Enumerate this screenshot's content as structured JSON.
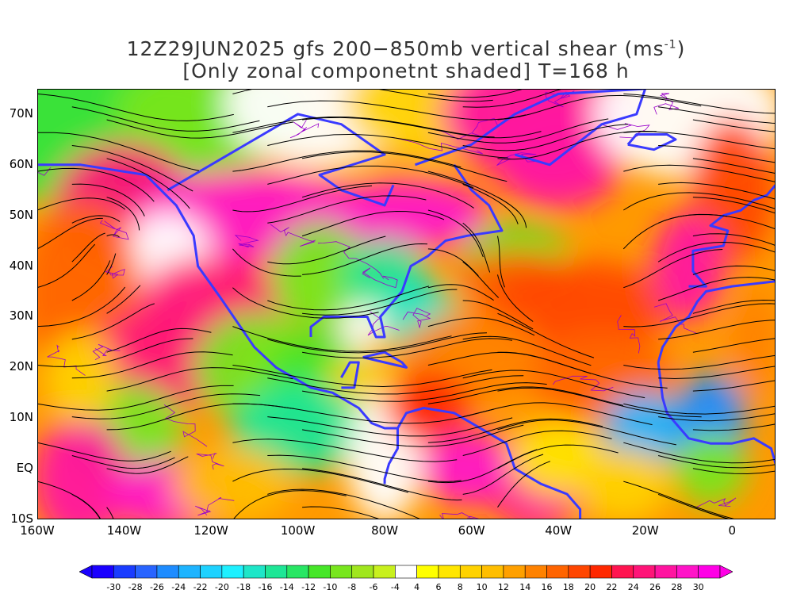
{
  "title": {
    "line1_pre": "12Z29JUN2025 gfs 200−850mb vertical shear (ms",
    "line1_sup": "-1",
    "line1_post": ")",
    "line2": "[Only zonal componetnt shaded] T=168 h"
  },
  "axes": {
    "lat_labels": [
      "70N",
      "60N",
      "50N",
      "40N",
      "30N",
      "20N",
      "10N",
      "EQ",
      "10S"
    ],
    "lon_labels": [
      "160W",
      "140W",
      "120W",
      "100W",
      "80W",
      "60W",
      "40W",
      "20W",
      "0"
    ]
  },
  "colorbar": {
    "labels": [
      "-30",
      "-28",
      "-26",
      "-24",
      "-22",
      "-20",
      "-18",
      "-16",
      "-14",
      "-12",
      "-10",
      "-8",
      "-6",
      "-4",
      "4",
      "6",
      "8",
      "10",
      "12",
      "14",
      "16",
      "18",
      "20",
      "22",
      "24",
      "26",
      "28",
      "30"
    ],
    "colors": [
      "#1a00ff",
      "#1a3cff",
      "#2864ff",
      "#1e8cff",
      "#1eb4ff",
      "#1ed2ff",
      "#1ef0ff",
      "#1ee6c8",
      "#1ee696",
      "#28e664",
      "#46e628",
      "#78e61e",
      "#a0e61e",
      "#c8f01e",
      "#ffffff",
      "#ffff00",
      "#ffe600",
      "#ffd200",
      "#ffbe00",
      "#ffa000",
      "#ff8200",
      "#ff6400",
      "#ff4600",
      "#ff2800",
      "#ff1450",
      "#ff1478",
      "#ff14a0",
      "#ff14c8",
      "#ff00e6"
    ]
  },
  "map": {
    "lon_range": [
      -160,
      10
    ],
    "lat_range": [
      -10,
      75
    ],
    "coastline_color": "#3a3aff",
    "contour_color": "#9900cc",
    "streamline_color": "#000000"
  }
}
